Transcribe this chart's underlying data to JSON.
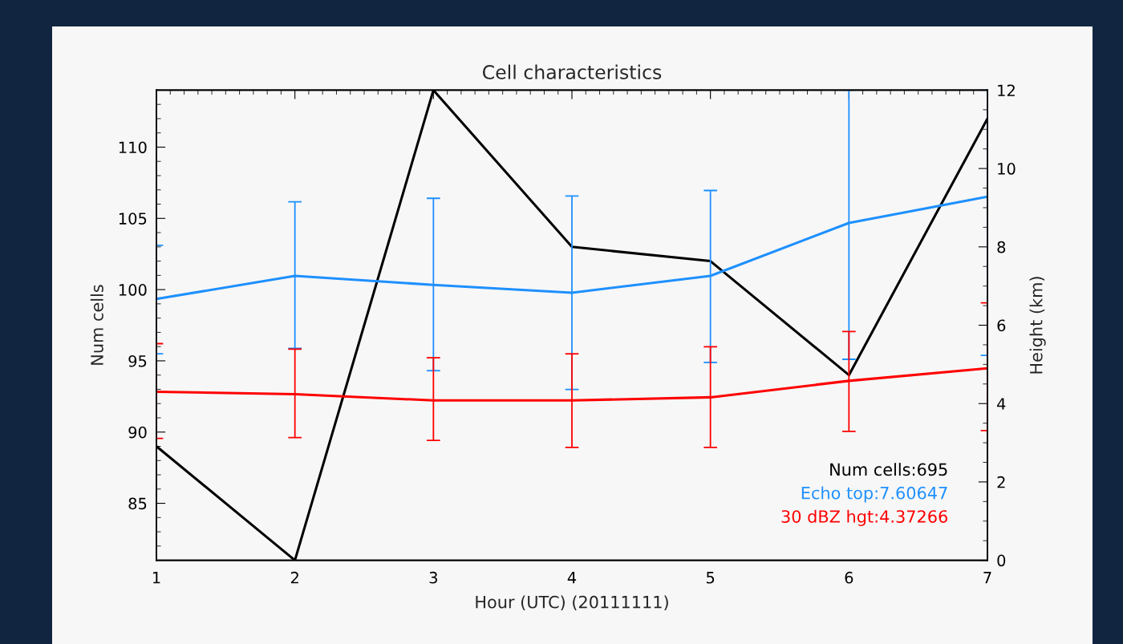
{
  "chart_data": {
    "type": "line",
    "title": "Cell characteristics",
    "xlabel": "Hour (UTC) (20111111)",
    "ylabel": "Num cells",
    "y2label": "Height (km)",
    "x": [
      1,
      2,
      3,
      4,
      5,
      6,
      7
    ],
    "series": [
      {
        "color": "#000000",
        "values": [
          89,
          81,
          114,
          103,
          102,
          94,
          112
        ]
      },
      {
        "color": "#1e90ff",
        "axis": "y2",
        "values": [
          6.67,
          7.26,
          7.03,
          6.83,
          7.26,
          8.61,
          9.28
        ],
        "errors": [
          [
            5.27,
            8.04
          ],
          [
            5.41,
            9.15
          ],
          [
            4.84,
            9.24
          ],
          [
            4.36,
            9.3
          ],
          [
            5.05,
            9.44
          ],
          [
            5.13,
            12
          ],
          [
            5.23,
            12
          ]
        ]
      },
      {
        "color": "#ff0000",
        "axis": "y2",
        "values": [
          4.3,
          4.24,
          4.08,
          4.08,
          4.16,
          4.58,
          4.9
        ],
        "errors": [
          [
            3.11,
            5.53
          ],
          [
            3.13,
            5.39
          ],
          [
            3.06,
            5.17
          ],
          [
            2.88,
            5.27
          ],
          [
            2.88,
            5.45
          ],
          [
            3.29,
            5.84
          ],
          [
            3.31,
            6.57
          ]
        ]
      }
    ],
    "xlim": [
      1,
      7
    ],
    "xticks": [
      1,
      2,
      3,
      4,
      5,
      6,
      7
    ],
    "ylim": [
      81,
      114
    ],
    "yticks": [
      85,
      90,
      95,
      100,
      105,
      110
    ],
    "y2lim": [
      0,
      12
    ],
    "y2ticks": [
      0,
      2,
      4,
      6,
      8,
      10,
      12
    ],
    "grid": false,
    "legend": false,
    "marker": "none",
    "line_style": "solid",
    "annotations": [
      "Num cells:695",
      "Echo top:7.60647",
      "30 dBZ hgt:4.37266"
    ]
  }
}
